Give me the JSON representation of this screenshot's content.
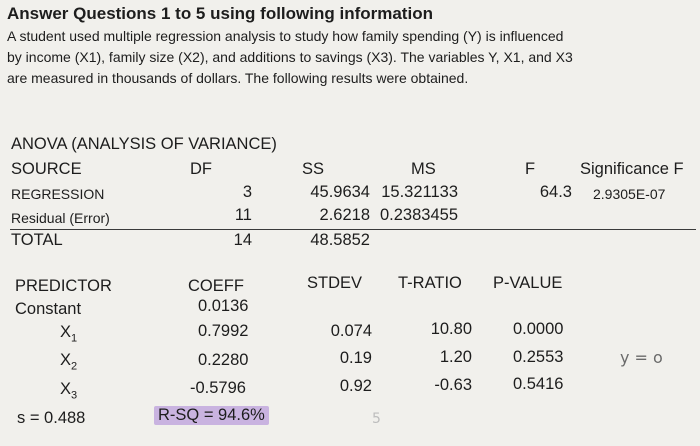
{
  "heading": "Answer Questions 1 to 5 using following information",
  "intro": [
    "A student used multiple regression analysis to study how family spending (Y) is influenced",
    "by income (X1), family size (X2), and additions to savings (X3).  The variables Y, X1, and X3",
    "are measured in thousands of dollars.  The following results were obtained."
  ],
  "anova": {
    "title": "ANOVA (ANALYSIS OF VARIANCE)",
    "headers": {
      "source": "SOURCE",
      "df": "DF",
      "ss": "SS",
      "ms": "MS",
      "f": "F",
      "sig": "Significance F"
    },
    "rows": [
      {
        "source": "REGRESSION",
        "df": "3",
        "ss": "45.9634",
        "ms": "15.321133",
        "f": "64.3",
        "sig": "2.9305E-07"
      },
      {
        "source": "Residual (Error)",
        "df": "11",
        "ss": "2.6218",
        "ms": "0.2383455",
        "f": "",
        "sig": ""
      },
      {
        "source": "TOTAL",
        "df": "14",
        "ss": "48.5852",
        "ms": "",
        "f": "",
        "sig": ""
      }
    ]
  },
  "coef": {
    "headers": {
      "predictor": "PREDICTOR",
      "coeff": "COEFF",
      "stdev": "STDEV",
      "tratio": "T-RATIO",
      "pvalue": "P-VALUE"
    },
    "rows": [
      {
        "predictor": "Constant",
        "coeff": "0.0136",
        "stdev": "",
        "tratio": "",
        "pvalue": ""
      },
      {
        "predictor": "X",
        "sub": "1",
        "coeff": "0.7992",
        "stdev": "0.074",
        "tratio": "10.80",
        "pvalue": "0.0000"
      },
      {
        "predictor": "X",
        "sub": "2",
        "coeff": "0.2280",
        "stdev": "0.19",
        "tratio": "1.20",
        "pvalue": "0.2553"
      },
      {
        "predictor": "X",
        "sub": "3",
        "coeff": "-0.5796",
        "stdev": "0.92",
        "tratio": "-0.63",
        "pvalue": "0.5416"
      }
    ],
    "s_value": "s  =  0.488",
    "rsq": "R-SQ  =  94.6%"
  },
  "handwriting": {
    "note": "y = o",
    "tick": "5"
  }
}
